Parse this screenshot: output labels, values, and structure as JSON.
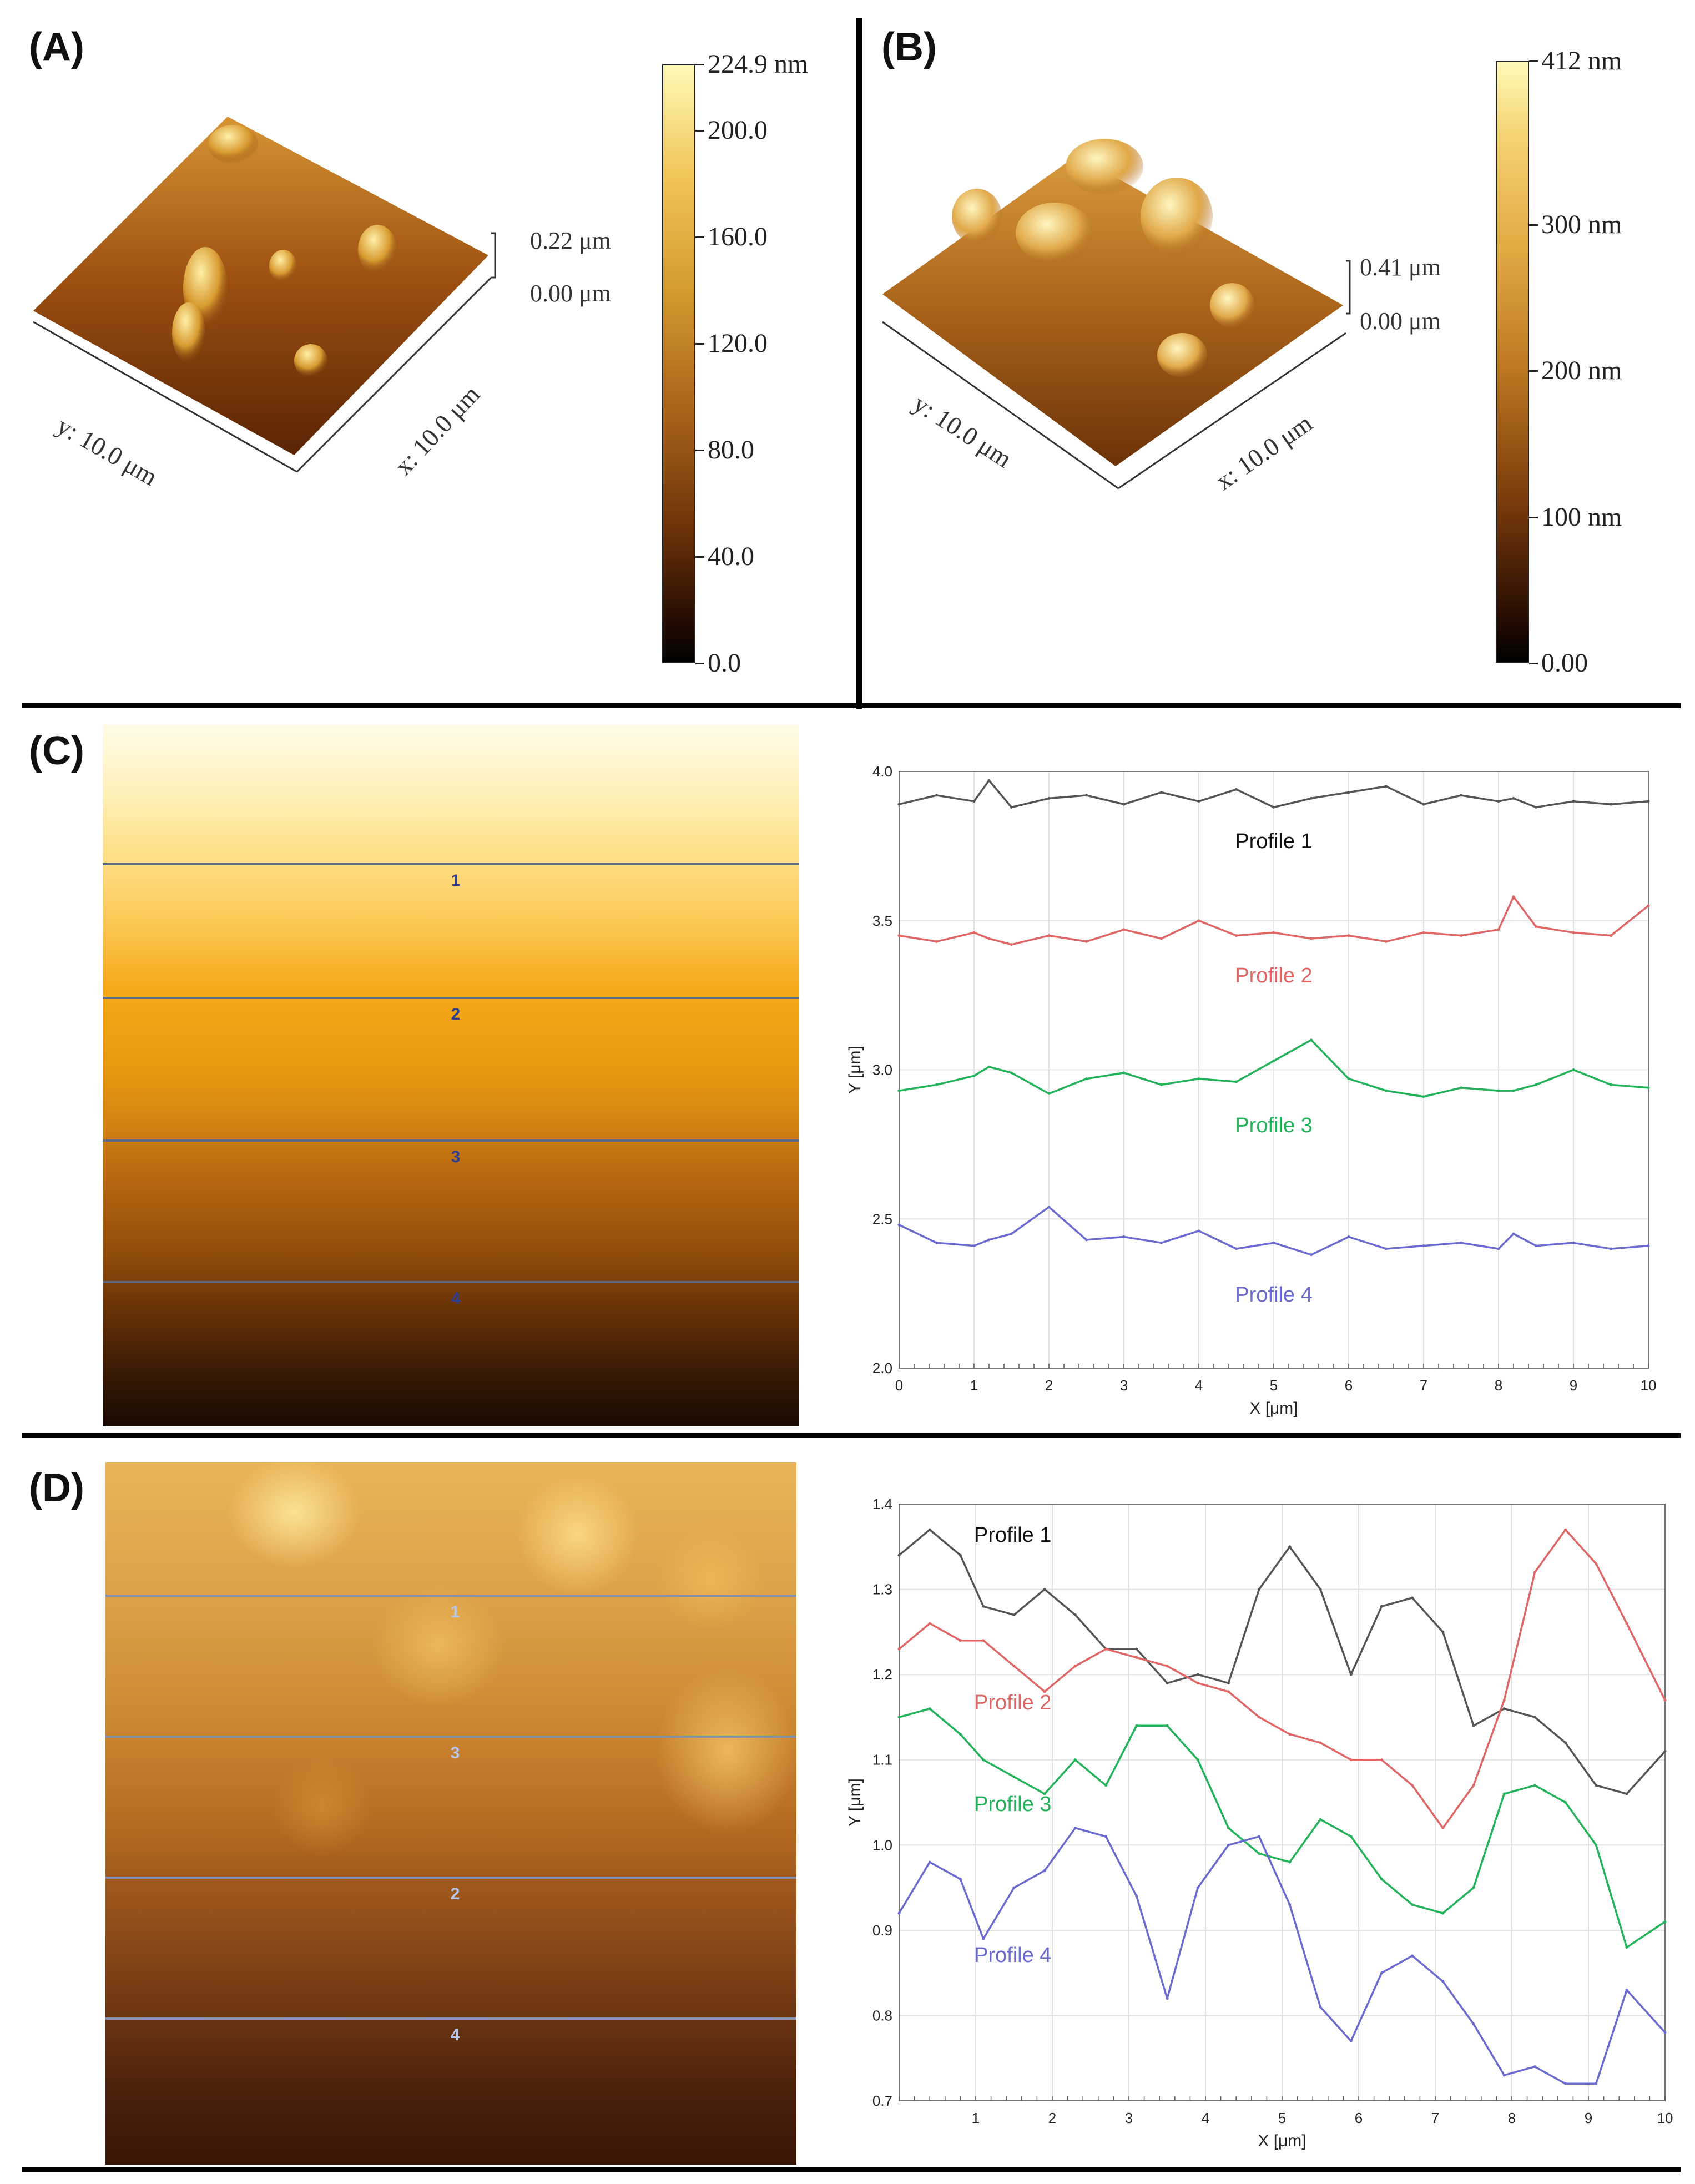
{
  "panels": {
    "A": {
      "label": "(A)",
      "z_scale": {
        "top": "0.22 μm",
        "bottom": "0.00 μm"
      },
      "axes": {
        "y": "y: 10.0 μm",
        "x": "x: 10.0 μm"
      },
      "colorbar_ticks": [
        "224.9 nm",
        "200.0",
        "160.0",
        "120.0",
        "80.0",
        "40.0",
        "0.0"
      ],
      "colorbar_values": [
        224.9,
        200.0,
        160.0,
        120.0,
        80.0,
        40.0,
        0.0
      ],
      "colorbar_max": 224.9
    },
    "B": {
      "label": "(B)",
      "z_scale": {
        "top": "0.41 μm",
        "bottom": "0.00 μm"
      },
      "axes": {
        "y": "y: 10.0 μm",
        "x": "x: 10.0 μm"
      },
      "colorbar_ticks": [
        "412 nm",
        "300 nm",
        "200 nm",
        "100 nm",
        "0.00"
      ],
      "colorbar_values": [
        412,
        300,
        200,
        100,
        0
      ],
      "colorbar_max": 412
    },
    "C": {
      "label": "(C)",
      "scan_lines": [
        "1",
        "2",
        "3",
        "4"
      ]
    },
    "D": {
      "label": "(D)",
      "scan_lines": [
        "1",
        "3",
        "2",
        "4"
      ]
    }
  },
  "colors": {
    "profile1": "#555555",
    "profile2": "#e06666",
    "profile3": "#22b35a",
    "profile4": "#6a6ad0"
  },
  "chart_data": [
    {
      "id": "C",
      "type": "line",
      "title": "",
      "xlabel": "X [μm]",
      "ylabel": "Y [μm]",
      "xlim": [
        0,
        10
      ],
      "ylim": [
        2.0,
        4.0
      ],
      "xticks": [
        0,
        1,
        2,
        3,
        4,
        5,
        6,
        7,
        8,
        9,
        10
      ],
      "yticks": [
        2.0,
        2.5,
        3.0,
        3.5,
        4.0
      ],
      "x": [
        0,
        0.5,
        1,
        1.2,
        1.5,
        2,
        2.5,
        3,
        3.5,
        4,
        4.5,
        5,
        5.5,
        6,
        6.5,
        7,
        7.5,
        8,
        8.2,
        8.5,
        9,
        9.5,
        10
      ],
      "series": [
        {
          "name": "Profile 1",
          "values": [
            3.89,
            3.92,
            3.9,
            3.97,
            3.88,
            3.91,
            3.92,
            3.89,
            3.93,
            3.9,
            3.94,
            3.88,
            3.91,
            3.93,
            3.95,
            3.89,
            3.92,
            3.9,
            3.91,
            3.88,
            3.9,
            3.89,
            3.9
          ]
        },
        {
          "name": "Profile 2",
          "values": [
            3.45,
            3.43,
            3.46,
            3.44,
            3.42,
            3.45,
            3.43,
            3.47,
            3.44,
            3.5,
            3.45,
            3.46,
            3.44,
            3.45,
            3.43,
            3.46,
            3.45,
            3.47,
            3.58,
            3.48,
            3.46,
            3.45,
            3.55
          ]
        },
        {
          "name": "Profile 3",
          "values": [
            2.93,
            2.95,
            2.98,
            3.01,
            2.99,
            2.92,
            2.97,
            2.99,
            2.95,
            2.97,
            2.96,
            3.03,
            3.1,
            2.97,
            2.93,
            2.91,
            2.94,
            2.93,
            2.93,
            2.95,
            3.0,
            2.95,
            2.94
          ]
        },
        {
          "name": "Profile 4",
          "values": [
            2.48,
            2.42,
            2.41,
            2.43,
            2.45,
            2.54,
            2.43,
            2.44,
            2.42,
            2.46,
            2.4,
            2.42,
            2.38,
            2.44,
            2.4,
            2.41,
            2.42,
            2.4,
            2.45,
            2.41,
            2.42,
            2.4,
            2.41
          ]
        }
      ]
    },
    {
      "id": "D",
      "type": "line",
      "title": "",
      "xlabel": "X [μm]",
      "ylabel": "Y [μm]",
      "xlim": [
        0,
        10
      ],
      "ylim": [
        0.7,
        1.4
      ],
      "xticks": [
        1,
        2,
        3,
        4,
        5,
        6,
        7,
        8,
        9,
        10
      ],
      "yticks": [
        0.7,
        0.8,
        0.9,
        1.0,
        1.1,
        1.2,
        1.3,
        1.4
      ],
      "x": [
        0,
        0.4,
        0.8,
        1.1,
        1.5,
        1.9,
        2.3,
        2.7,
        3.1,
        3.5,
        3.9,
        4.3,
        4.7,
        5.1,
        5.5,
        5.9,
        6.3,
        6.7,
        7.1,
        7.5,
        7.9,
        8.3,
        8.7,
        9.1,
        9.5,
        10
      ],
      "series": [
        {
          "name": "Profile 1",
          "values": [
            1.34,
            1.37,
            1.34,
            1.28,
            1.27,
            1.3,
            1.27,
            1.23,
            1.23,
            1.19,
            1.2,
            1.19,
            1.3,
            1.35,
            1.3,
            1.2,
            1.28,
            1.29,
            1.25,
            1.14,
            1.16,
            1.15,
            1.12,
            1.07,
            1.06,
            1.11
          ]
        },
        {
          "name": "Profile 2",
          "values": [
            1.23,
            1.26,
            1.24,
            1.24,
            1.21,
            1.18,
            1.21,
            1.23,
            1.22,
            1.21,
            1.19,
            1.18,
            1.15,
            1.13,
            1.12,
            1.1,
            1.1,
            1.07,
            1.02,
            1.07,
            1.17,
            1.32,
            1.37,
            1.33,
            1.26,
            1.17
          ]
        },
        {
          "name": "Profile 3",
          "values": [
            1.15,
            1.16,
            1.13,
            1.1,
            1.08,
            1.06,
            1.1,
            1.07,
            1.14,
            1.14,
            1.1,
            1.02,
            0.99,
            0.98,
            1.03,
            1.01,
            0.96,
            0.93,
            0.92,
            0.95,
            1.06,
            1.07,
            1.05,
            1.0,
            0.88,
            0.91
          ]
        },
        {
          "name": "Profile 4",
          "values": [
            0.92,
            0.98,
            0.96,
            0.89,
            0.95,
            0.97,
            1.02,
            1.01,
            0.94,
            0.82,
            0.95,
            1.0,
            1.01,
            0.93,
            0.81,
            0.77,
            0.85,
            0.87,
            0.84,
            0.79,
            0.73,
            0.74,
            0.72,
            0.72,
            0.83,
            0.78
          ]
        }
      ]
    }
  ]
}
